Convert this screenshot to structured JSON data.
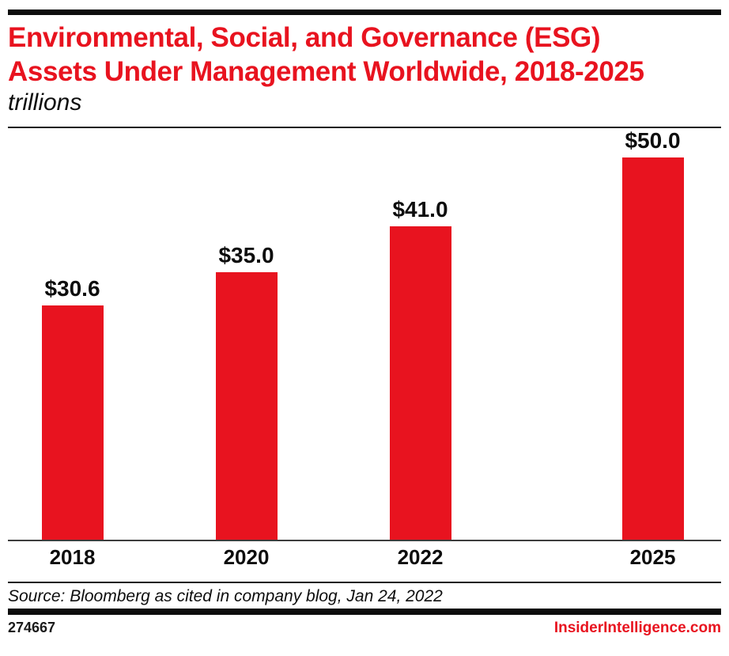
{
  "header": {
    "title_line1": "Environmental, Social, and Governance (ESG)",
    "title_line2": "Assets Under Management Worldwide, 2018-2025",
    "units": "trillions",
    "title_color": "#e8131f"
  },
  "chart_data": {
    "type": "bar",
    "title": "Environmental, Social, and Governance (ESG) Assets Under Management Worldwide, 2018-2025",
    "subtitle_units": "trillions",
    "categories": [
      "2018",
      "2020",
      "2022",
      "2025"
    ],
    "values": [
      30.6,
      35.0,
      41.0,
      50.0
    ],
    "value_labels": [
      "$30.6",
      "$35.0",
      "$41.0",
      "$50.0"
    ],
    "xlabel": "",
    "ylabel": "",
    "ylim": [
      0,
      54
    ],
    "grid": false,
    "legend": "none",
    "bar_color": "#e8131f",
    "value_label_color": "#0d0d0d"
  },
  "footer": {
    "source": "Source: Bloomberg as cited in company blog, Jan 24, 2022",
    "chart_id": "274667",
    "brand": "InsiderIntelligence.com",
    "brand_color": "#e8131f"
  }
}
